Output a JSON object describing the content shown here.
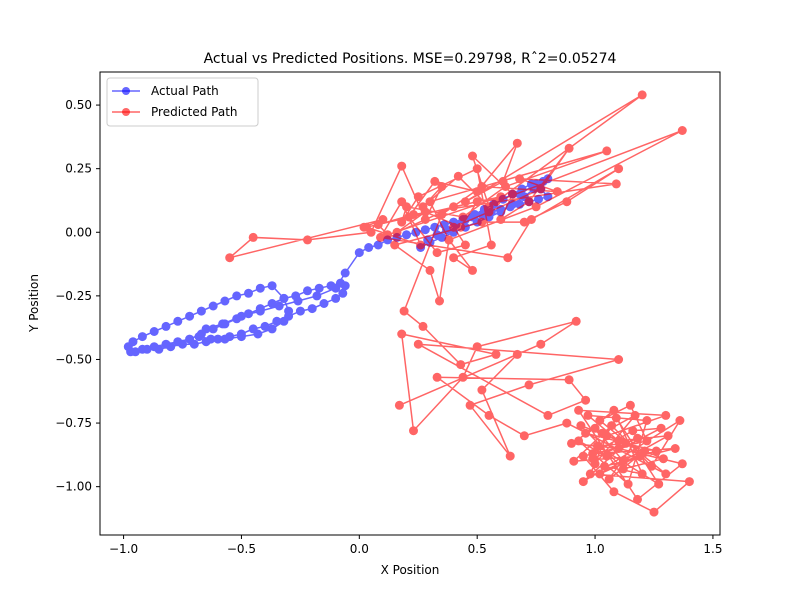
{
  "chart_data": {
    "type": "line",
    "title": "Actual vs Predicted Positions. MSE=0.29798, Rˆ2=0.05274",
    "xlabel": "X Position",
    "ylabel": "Y Position",
    "xlim": [
      -1.1,
      1.53
    ],
    "ylim": [
      -1.19,
      0.63
    ],
    "xticks": [
      -1.0,
      -0.5,
      0.0,
      0.5,
      1.0,
      1.5
    ],
    "xtick_labels": [
      "−1.0",
      "−0.5",
      "0.0",
      "0.5",
      "1.0",
      "1.5"
    ],
    "yticks": [
      0.5,
      0.25,
      0.0,
      -0.25,
      -0.5,
      -0.75,
      -1.0
    ],
    "ytick_labels": [
      "0.50",
      "0.25",
      "0.00",
      "−0.25",
      "−0.50",
      "−0.75",
      "−1.00"
    ],
    "grid": false,
    "legend_position": "upper left",
    "series": [
      {
        "name": "Actual Path",
        "color": "#0000ff",
        "marker": "circle",
        "points": [
          [
            -0.97,
            -0.47
          ],
          [
            -0.92,
            -0.46
          ],
          [
            -0.87,
            -0.45
          ],
          [
            -0.82,
            -0.44
          ],
          [
            -0.77,
            -0.43
          ],
          [
            -0.72,
            -0.42
          ],
          [
            -0.67,
            -0.4
          ],
          [
            -0.62,
            -0.38
          ],
          [
            -0.57,
            -0.36
          ],
          [
            -0.52,
            -0.34
          ],
          [
            -0.47,
            -0.32
          ],
          [
            -0.42,
            -0.3
          ],
          [
            -0.37,
            -0.28
          ],
          [
            -0.32,
            -0.26
          ],
          [
            -0.27,
            -0.25
          ],
          [
            -0.22,
            -0.23
          ],
          [
            -0.17,
            -0.22
          ],
          [
            -0.12,
            -0.21
          ],
          [
            -0.08,
            -0.2
          ],
          [
            -0.06,
            -0.21
          ],
          [
            -0.07,
            -0.24
          ],
          [
            -0.1,
            -0.26
          ],
          [
            -0.15,
            -0.28
          ],
          [
            -0.2,
            -0.3
          ],
          [
            -0.25,
            -0.31
          ],
          [
            -0.3,
            -0.33
          ],
          [
            -0.35,
            -0.35
          ],
          [
            -0.4,
            -0.37
          ],
          [
            -0.45,
            -0.38
          ],
          [
            -0.5,
            -0.4
          ],
          [
            -0.55,
            -0.41
          ],
          [
            -0.6,
            -0.42
          ],
          [
            -0.65,
            -0.43
          ],
          [
            -0.7,
            -0.44
          ],
          [
            -0.75,
            -0.44
          ],
          [
            -0.8,
            -0.45
          ],
          [
            -0.85,
            -0.46
          ],
          [
            -0.9,
            -0.46
          ],
          [
            -0.95,
            -0.47
          ],
          [
            -0.98,
            -0.45
          ],
          [
            -0.96,
            -0.43
          ],
          [
            -0.92,
            -0.41
          ],
          [
            -0.87,
            -0.39
          ],
          [
            -0.82,
            -0.37
          ],
          [
            -0.77,
            -0.35
          ],
          [
            -0.72,
            -0.33
          ],
          [
            -0.67,
            -0.31
          ],
          [
            -0.62,
            -0.29
          ],
          [
            -0.57,
            -0.27
          ],
          [
            -0.52,
            -0.25
          ],
          [
            -0.47,
            -0.24
          ],
          [
            -0.42,
            -0.22
          ],
          [
            -0.37,
            -0.21
          ],
          [
            -0.32,
            -0.26
          ],
          [
            -0.3,
            -0.31
          ],
          [
            -0.32,
            -0.35
          ],
          [
            -0.37,
            -0.38
          ],
          [
            -0.43,
            -0.4
          ],
          [
            -0.5,
            -0.41
          ],
          [
            -0.57,
            -0.42
          ],
          [
            -0.63,
            -0.42
          ],
          [
            -0.68,
            -0.41
          ],
          [
            -0.65,
            -0.38
          ],
          [
            -0.58,
            -0.36
          ],
          [
            -0.5,
            -0.33
          ],
          [
            -0.42,
            -0.31
          ],
          [
            -0.34,
            -0.29
          ],
          [
            -0.26,
            -0.27
          ],
          [
            -0.18,
            -0.25
          ],
          [
            -0.1,
            -0.22
          ],
          [
            -0.06,
            -0.16
          ],
          [
            0.0,
            -0.08
          ],
          [
            0.04,
            -0.06
          ],
          [
            0.08,
            -0.05
          ],
          [
            0.12,
            -0.03
          ],
          [
            0.16,
            -0.02
          ],
          [
            0.2,
            -0.01
          ],
          [
            0.24,
            0.0
          ],
          [
            0.28,
            0.01
          ],
          [
            0.32,
            0.02
          ],
          [
            0.36,
            0.03
          ],
          [
            0.4,
            0.04
          ],
          [
            0.44,
            0.05
          ],
          [
            0.48,
            0.06
          ],
          [
            0.52,
            0.07
          ],
          [
            0.56,
            0.08
          ],
          [
            0.6,
            0.09
          ],
          [
            0.64,
            0.1
          ],
          [
            0.68,
            0.11
          ],
          [
            0.72,
            0.12
          ],
          [
            0.76,
            0.13
          ],
          [
            0.8,
            0.14
          ],
          [
            0.77,
            0.17
          ],
          [
            0.73,
            0.19
          ],
          [
            0.69,
            0.17
          ],
          [
            0.65,
            0.15
          ],
          [
            0.61,
            0.13
          ],
          [
            0.57,
            0.11
          ],
          [
            0.53,
            0.09
          ],
          [
            0.49,
            0.07
          ],
          [
            0.45,
            0.05
          ],
          [
            0.41,
            0.03
          ],
          [
            0.37,
            0.01
          ],
          [
            0.33,
            -0.01
          ],
          [
            0.29,
            -0.03
          ],
          [
            0.26,
            -0.06
          ],
          [
            0.3,
            -0.04
          ],
          [
            0.35,
            -0.02
          ],
          [
            0.4,
            0.0
          ],
          [
            0.45,
            0.02
          ],
          [
            0.5,
            0.04
          ],
          [
            0.55,
            0.06
          ],
          [
            0.6,
            0.08
          ],
          [
            0.65,
            0.11
          ],
          [
            0.7,
            0.14
          ],
          [
            0.74,
            0.17
          ],
          [
            0.78,
            0.2
          ],
          [
            0.8,
            0.21
          ],
          [
            0.75,
            0.19
          ],
          [
            0.68,
            0.15
          ]
        ]
      },
      {
        "name": "Predicted Path",
        "color": "#ff0000",
        "marker": "circle",
        "points": [
          [
            0.02,
            0.02
          ],
          [
            0.1,
            0.05
          ],
          [
            -0.55,
            -0.1
          ],
          [
            -0.45,
            -0.02
          ],
          [
            -0.22,
            -0.03
          ],
          [
            0.05,
            0.0
          ],
          [
            0.18,
            0.26
          ],
          [
            0.28,
            0.05
          ],
          [
            0.35,
            0.18
          ],
          [
            0.27,
            0.1
          ],
          [
            0.42,
            0.22
          ],
          [
            0.55,
            0.1
          ],
          [
            0.48,
            0.3
          ],
          [
            0.65,
            0.15
          ],
          [
            0.6,
            0.05
          ],
          [
            0.72,
            0.12
          ],
          [
            0.89,
            0.33
          ],
          [
            0.77,
            0.17
          ],
          [
            0.55,
            0.08
          ],
          [
            0.4,
            0.02
          ],
          [
            0.45,
            -0.05
          ],
          [
            0.33,
            -0.08
          ],
          [
            0.21,
            0.06
          ],
          [
            0.32,
            0.2
          ],
          [
            0.5,
            0.16
          ],
          [
            0.67,
            0.35
          ],
          [
            0.61,
            0.2
          ],
          [
            0.45,
            0.12
          ],
          [
            1.2,
            0.54
          ],
          [
            0.58,
            0.12
          ],
          [
            1.37,
            0.4
          ],
          [
            0.75,
            0.1
          ],
          [
            0.38,
            -0.03
          ],
          [
            0.3,
            0.12
          ],
          [
            1.05,
            0.32
          ],
          [
            0.62,
            0.18
          ],
          [
            0.44,
            0.06
          ],
          [
            0.2,
            0.1
          ],
          [
            0.18,
            0.04
          ],
          [
            0.25,
            0.14
          ],
          [
            0.5,
            0.25
          ],
          [
            0.56,
            -0.05
          ],
          [
            0.4,
            -0.1
          ],
          [
            0.48,
            -0.15
          ],
          [
            0.38,
            -0.03
          ],
          [
            0.34,
            -0.27
          ],
          [
            0.3,
            -0.15
          ],
          [
            0.15,
            -0.05
          ],
          [
            0.52,
            0.04
          ],
          [
            0.7,
            0.04
          ],
          [
            0.88,
            0.12
          ],
          [
            1.1,
            0.25
          ],
          [
            0.73,
            0.05
          ],
          [
            0.63,
            -0.1
          ],
          [
            0.09,
            -0.02
          ],
          [
            0.18,
            0.12
          ],
          [
            0.26,
            -0.05
          ],
          [
            0.03,
            0.02
          ],
          [
            0.5,
            0.12
          ],
          [
            0.43,
            0.02
          ],
          [
            0.28,
            0.08
          ],
          [
            0.16,
            0.0
          ],
          [
            0.4,
            0.1
          ],
          [
            0.6,
            0.14
          ],
          [
            0.12,
            -0.01
          ],
          [
            0.08,
            0.03
          ],
          [
            0.23,
            0.07
          ],
          [
            1.09,
            0.19
          ],
          [
            0.68,
            0.21
          ],
          [
            0.84,
            0.16
          ],
          [
            0.52,
            0.18
          ],
          [
            0.35,
            0.07
          ],
          [
            0.19,
            -0.31
          ],
          [
            0.27,
            -0.37
          ],
          [
            0.43,
            -0.52
          ],
          [
            0.58,
            -0.48
          ],
          [
            0.18,
            -0.4
          ],
          [
            0.23,
            -0.78
          ],
          [
            0.44,
            -0.57
          ],
          [
            0.5,
            -0.45
          ],
          [
            0.92,
            -0.35
          ],
          [
            0.77,
            -0.44
          ],
          [
            0.17,
            -0.68
          ],
          [
            0.67,
            -0.48
          ],
          [
            0.52,
            -0.62
          ],
          [
            0.64,
            -0.88
          ],
          [
            0.47,
            -0.68
          ],
          [
            0.72,
            -0.6
          ],
          [
            1.1,
            -0.5
          ],
          [
            0.25,
            -0.44
          ],
          [
            0.8,
            -0.72
          ],
          [
            0.96,
            -0.66
          ],
          [
            0.89,
            -0.58
          ],
          [
            0.33,
            -0.57
          ],
          [
            0.55,
            -0.72
          ],
          [
            0.7,
            -0.8
          ],
          [
            0.88,
            -0.75
          ],
          [
            1.3,
            -0.95
          ],
          [
            1.02,
            -0.74
          ],
          [
            1.15,
            -0.68
          ],
          [
            1.22,
            -0.82
          ],
          [
            0.95,
            -0.88
          ],
          [
            1.08,
            -1.02
          ],
          [
            1.25,
            -1.1
          ],
          [
            1.4,
            -0.98
          ],
          [
            0.98,
            -0.95
          ],
          [
            1.05,
            -0.8
          ],
          [
            1.3,
            -0.72
          ],
          [
            0.93,
            -0.7
          ],
          [
            1.18,
            -1.05
          ],
          [
            1.37,
            -0.91
          ],
          [
            1.1,
            -0.85
          ],
          [
            0.9,
            -0.83
          ],
          [
            1.0,
            -0.77
          ],
          [
            1.12,
            -0.9
          ],
          [
            1.26,
            -0.86
          ],
          [
            0.96,
            -0.79
          ],
          [
            1.08,
            -0.7
          ],
          [
            1.2,
            -0.95
          ],
          [
            1.04,
            -0.92
          ],
          [
            1.34,
            -0.85
          ],
          [
            0.99,
            -0.87
          ],
          [
            1.16,
            -0.78
          ],
          [
            1.28,
            -0.77
          ],
          [
            1.05,
            -0.88
          ],
          [
            0.93,
            -0.82
          ],
          [
            1.14,
            -0.99
          ],
          [
            1.22,
            -0.74
          ],
          [
            0.97,
            -0.72
          ],
          [
            1.1,
            -0.82
          ],
          [
            1.31,
            -0.8
          ],
          [
            1.02,
            -0.95
          ],
          [
            1.19,
            -0.88
          ],
          [
            0.91,
            -0.9
          ],
          [
            1.07,
            -0.76
          ],
          [
            1.24,
            -0.92
          ],
          [
            1.36,
            -0.74
          ],
          [
            0.95,
            -0.98
          ],
          [
            1.13,
            -0.83
          ],
          [
            1.01,
            -0.84
          ],
          [
            1.27,
            -0.99
          ],
          [
            1.09,
            -0.73
          ],
          [
            0.99,
            -0.89
          ],
          [
            1.18,
            -0.81
          ],
          [
            1.06,
            -0.97
          ],
          [
            1.21,
            -0.86
          ],
          [
            0.94,
            -0.76
          ],
          [
            1.12,
            -0.93
          ],
          [
            1.29,
            -0.89
          ],
          [
            1.03,
            -0.79
          ],
          [
            1.17,
            -0.72
          ],
          [
            1.0,
            -0.91
          ]
        ]
      }
    ]
  }
}
